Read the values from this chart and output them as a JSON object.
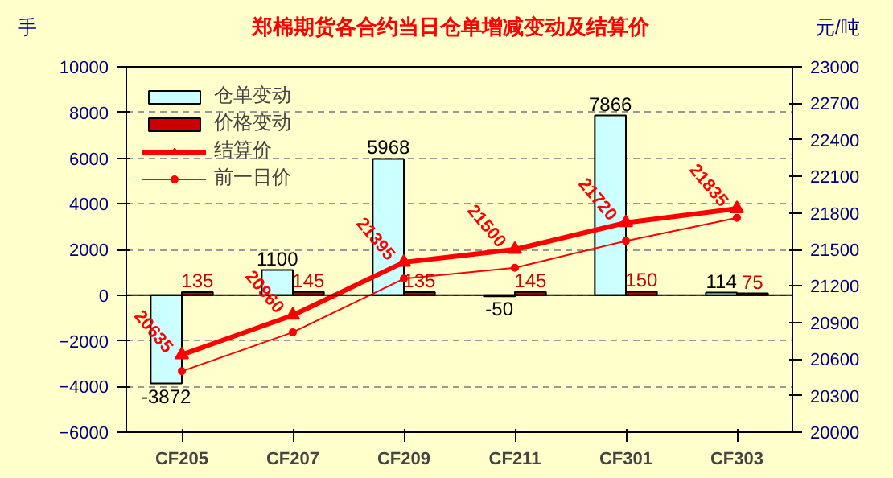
{
  "chart_data": {
    "type": "bar",
    "title": "郑棉期货各合约当日仓单增减变动及结算价",
    "ylabel": "手",
    "y2label": "元/吨",
    "categories": [
      "CF205",
      "CF207",
      "CF209",
      "CF211",
      "CF301",
      "CF303"
    ],
    "series": [
      {
        "name": "仓单变动",
        "color": "#ccffff",
        "values": [
          -3872,
          1100,
          5968,
          -50,
          7866,
          114
        ],
        "value_labels": [
          "-3872",
          "1100",
          "5968",
          "-50",
          "7866",
          "114"
        ]
      },
      {
        "name": "价格变动",
        "color": "#cc0000",
        "values": [
          135,
          145,
          135,
          145,
          150,
          75
        ],
        "value_labels": [
          "135",
          "145",
          "135",
          "145",
          "150",
          "75"
        ]
      },
      {
        "name": "结算价",
        "type": "line",
        "axis": "y2",
        "color": "#ff0000",
        "marker": "triangle",
        "values": [
          20635,
          20960,
          21395,
          21500,
          21720,
          21835
        ],
        "value_labels": [
          "20635",
          "20960",
          "21395",
          "21500",
          "21720",
          "21835"
        ]
      },
      {
        "name": "前一日价",
        "type": "line",
        "axis": "y2",
        "color": "#ff0000",
        "marker": "circle",
        "values": [
          20500,
          20820,
          21260,
          21350,
          21570,
          21760
        ]
      }
    ],
    "ylim": [
      -6000,
      10000
    ],
    "yticks": [
      -6000,
      -4000,
      -2000,
      0,
      2000,
      4000,
      6000,
      8000,
      10000
    ],
    "y2lim": [
      20000,
      23000
    ],
    "y2ticks": [
      20000,
      20300,
      20600,
      20900,
      21200,
      21500,
      21800,
      22100,
      22400,
      22700,
      23000
    ],
    "grid": "y",
    "legend": "top left",
    "line_style": "solid"
  }
}
